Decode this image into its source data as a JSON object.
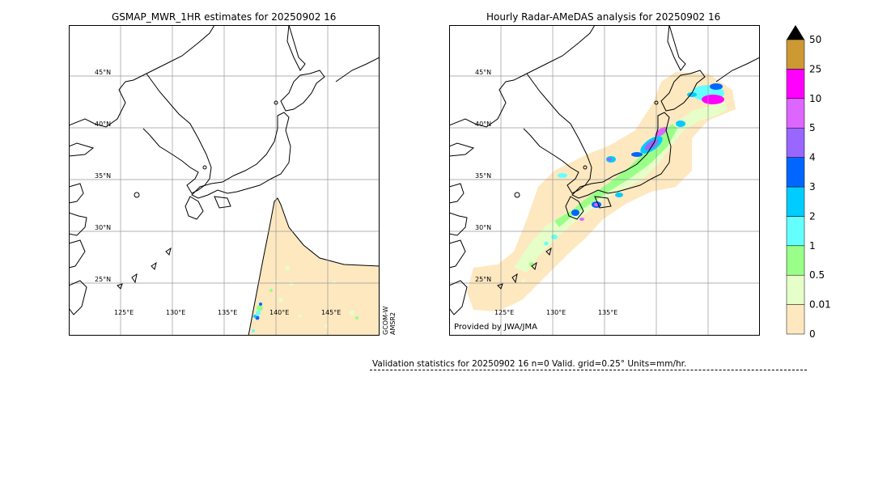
{
  "left_map": {
    "title": "GSMAP_MWR_1HR estimates for 20250902 16",
    "lat_labels": [
      "45°N",
      "40°N",
      "35°N",
      "30°N",
      "25°N"
    ],
    "lon_labels": [
      "125°E",
      "130°E",
      "135°E",
      "140°E",
      "145°E"
    ],
    "sensor_label_1": "GCOM-W",
    "sensor_label_2": "AMSR2"
  },
  "right_map": {
    "title": "Hourly Radar-AMeDAS analysis for 20250902 16",
    "lat_labels": [
      "45°N",
      "40°N",
      "35°N",
      "30°N",
      "25°N"
    ],
    "lon_labels": [
      "125°E",
      "130°E",
      "135°E"
    ],
    "provider": "Provided by JWA/JMA"
  },
  "colorbar": {
    "levels": [
      "0",
      "0.01",
      "0.5",
      "1",
      "2",
      "3",
      "4",
      "5",
      "10",
      "25",
      "50"
    ],
    "colors": [
      "#fde8c0",
      "#e6ffc8",
      "#99ff88",
      "#66ffff",
      "#00ccff",
      "#0066ff",
      "#9966ff",
      "#dd66ff",
      "#ff00ff",
      "#cc9933"
    ],
    "extend_color": "#000000"
  },
  "stats": {
    "text": "Validation statistics for 20250902 16  n=0 Valid. grid=0.25° Units=mm/hr."
  }
}
